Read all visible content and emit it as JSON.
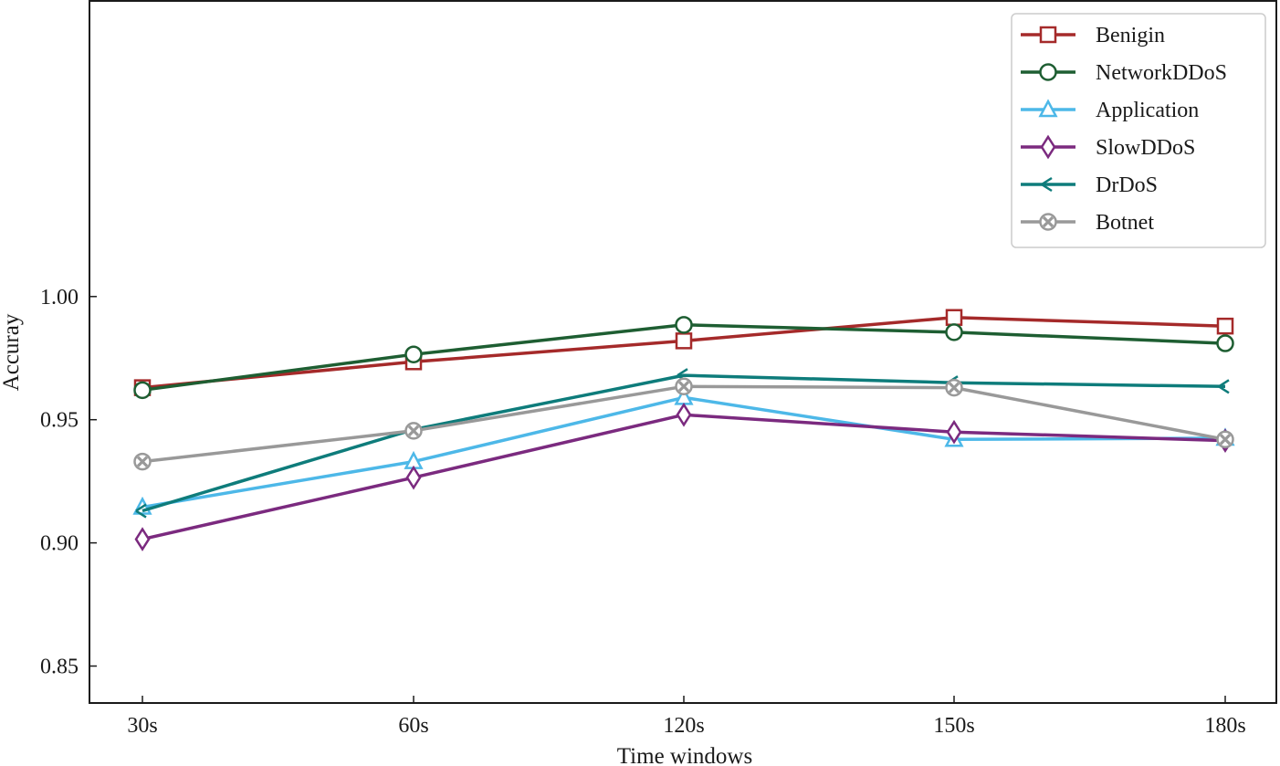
{
  "chart_data": {
    "type": "line",
    "title": "",
    "xlabel": "Time windows",
    "ylabel": "Accuray",
    "categories": [
      "30s",
      "60s",
      "120s",
      "150s",
      "180s"
    ],
    "ylim": [
      0.835,
      1.12
    ],
    "yticks": [
      0.85,
      0.9,
      0.95,
      1.0
    ],
    "ytick_labels": [
      "0.85",
      "0.90",
      "0.95",
      "1.00"
    ],
    "grid": false,
    "legend_position": "top-right",
    "series": [
      {
        "name": "Benigin",
        "color": "#a52a2a",
        "marker": "square",
        "values": [
          0.963,
          0.9735,
          0.982,
          0.9915,
          0.988
        ]
      },
      {
        "name": "NetworkDDoS",
        "color": "#1e5e32",
        "marker": "circle",
        "values": [
          0.962,
          0.9765,
          0.9885,
          0.9855,
          0.981
        ]
      },
      {
        "name": "Application",
        "color": "#4db8e8",
        "marker": "triangle",
        "values": [
          0.9145,
          0.933,
          0.959,
          0.942,
          0.9425
        ]
      },
      {
        "name": "SlowDDoS",
        "color": "#7b2a7f",
        "marker": "diamond",
        "values": [
          0.9015,
          0.9265,
          0.952,
          0.945,
          0.9415
        ]
      },
      {
        "name": "DrDoS",
        "color": "#0e7c7b",
        "marker": "tri-left",
        "values": [
          0.913,
          0.946,
          0.968,
          0.965,
          0.9635
        ]
      },
      {
        "name": "Botnet",
        "color": "#999999",
        "marker": "x-circle",
        "values": [
          0.933,
          0.9455,
          0.9635,
          0.963,
          0.942
        ]
      }
    ]
  }
}
